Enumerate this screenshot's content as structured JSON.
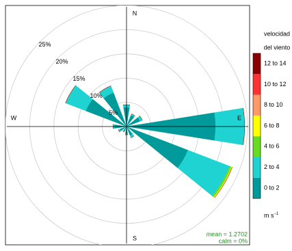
{
  "chart_data": {
    "type": "windrose",
    "directions": [
      0,
      30,
      60,
      90,
      120,
      150,
      180,
      210,
      240,
      270,
      300,
      330
    ],
    "compass": [
      "N",
      "E",
      "S",
      "W"
    ],
    "series": [
      {
        "name": "0 to 2",
        "color": "#009a9a",
        "values": [
          4,
          2.5,
          3,
          18.4,
          13.6,
          2,
          1.5,
          1,
          1.5,
          2.5,
          9,
          7.5
        ]
      },
      {
        "name": "2 to 4",
        "color": "#1fd3d3",
        "values": [
          0.5,
          0.3,
          0.5,
          6,
          9.2,
          0.5,
          0.2,
          0.2,
          0.3,
          0.3,
          4.5,
          1.5
        ]
      },
      {
        "name": "4 to 6",
        "color": "#66dd22",
        "values": [
          0,
          0,
          0,
          0,
          0.4,
          0,
          0,
          0,
          0,
          0,
          0,
          0
        ]
      },
      {
        "name": "6 to 8",
        "color": "#ffff00",
        "values": [
          0,
          0,
          0,
          0,
          0.2,
          0,
          0,
          0,
          0,
          0,
          0,
          0
        ]
      },
      {
        "name": "8 to 10",
        "color": "#ff9966",
        "values": [
          0,
          0,
          0,
          0,
          0,
          0,
          0,
          0,
          0,
          0,
          0,
          0
        ]
      },
      {
        "name": "10 to 12",
        "color": "#ff3333",
        "values": [
          0,
          0,
          0,
          0,
          0,
          0,
          0,
          0,
          0,
          0,
          0,
          0
        ]
      },
      {
        "name": "12 to 14",
        "color": "#8b0000",
        "values": [
          0,
          0,
          0,
          0,
          0,
          0,
          0,
          0,
          0,
          0,
          0,
          0
        ]
      }
    ],
    "rlim": [
      0,
      25
    ],
    "rticks": [
      {
        "value": 5,
        "label": "5%"
      },
      {
        "value": 10,
        "label": "10%"
      },
      {
        "value": 15,
        "label": "15%"
      },
      {
        "value": 20,
        "label": "20%"
      },
      {
        "value": 25,
        "label": "25%"
      }
    ],
    "legend_title": [
      "velocidad",
      "del viento"
    ],
    "unit": "m s",
    "unit_exponent": "−1",
    "annotations": [
      "mean = 1.2702",
      "calm = 0%"
    ]
  }
}
